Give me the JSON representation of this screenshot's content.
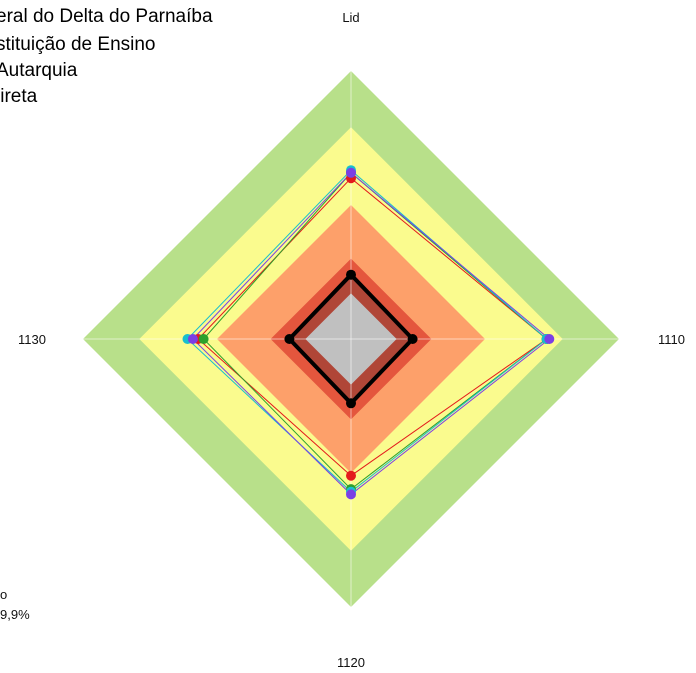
{
  "header": {
    "lines": [
      "eral do Delta do Parnaíba",
      "stituição de Ensino",
      "Autarquia",
      "lireta"
    ]
  },
  "footer_left": {
    "lines": [
      "o",
      "9,9%"
    ]
  },
  "chart_data": {
    "type": "radar",
    "axes": [
      "Lid",
      "1110",
      "1120",
      "1130"
    ],
    "rmax": 1.0,
    "bands": [
      {
        "r": 1.0,
        "color": "#b8e08a"
      },
      {
        "r": 0.79,
        "color": "#fafb8e"
      },
      {
        "r": 0.5,
        "color": "#fda06a"
      },
      {
        "r": 0.3,
        "color": "#e4563d"
      },
      {
        "r": 0.24,
        "color": "#b04637"
      },
      {
        "r": 0.17,
        "color": "#c0c0c0"
      }
    ],
    "series": [
      {
        "color": "#000000",
        "width": 4,
        "point_r": 5,
        "values": [
          0.24,
          0.23,
          0.24,
          0.23
        ]
      },
      {
        "color": "#e41a1c",
        "width": 1,
        "point_r": 5,
        "values": [
          0.6,
          0.73,
          0.51,
          0.57
        ]
      },
      {
        "color": "#2ca02c",
        "width": 1,
        "point_r": 5,
        "values": [
          0.62,
          0.73,
          0.56,
          0.55
        ]
      },
      {
        "color": "#17becf",
        "width": 1,
        "point_r": 5,
        "values": [
          0.63,
          0.73,
          0.57,
          0.61
        ]
      },
      {
        "color": "#7b3fe4",
        "width": 1,
        "point_r": 5,
        "values": [
          0.62,
          0.74,
          0.58,
          0.59
        ]
      }
    ],
    "grid": true,
    "legend": "top-left"
  }
}
